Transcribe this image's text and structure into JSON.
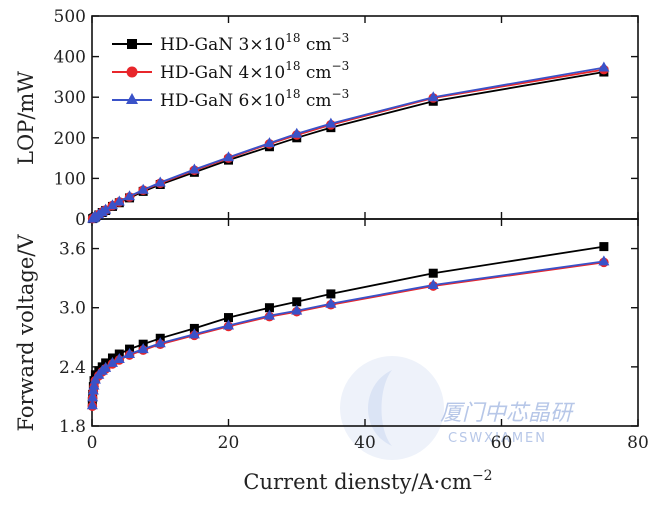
{
  "chart_data": [
    {
      "type": "line",
      "panel": "top",
      "ylabel": "LOP/mW",
      "ylim": [
        0,
        500
      ],
      "yticks": [
        "0",
        "100",
        "200",
        "300",
        "400",
        "500"
      ],
      "xlim": [
        0,
        80
      ],
      "legend_position": "top-left",
      "series": [
        {
          "name": "HD-GaN 3×10",
          "name_exp": "18",
          "name_unit": "cm",
          "name_unit_exp": "−3",
          "color": "#000000",
          "marker": "square",
          "x": [
            0.1,
            0.3,
            0.5,
            1,
            1.5,
            2,
            3,
            4,
            5.5,
            7.5,
            10,
            15,
            20,
            26,
            30,
            35,
            50,
            75
          ],
          "y": [
            1,
            3,
            5,
            10,
            16,
            21,
            31,
            40,
            52,
            68,
            85,
            115,
            145,
            178,
            200,
            225,
            290,
            362
          ]
        },
        {
          "name": "HD-GaN 4×10",
          "name_exp": "18",
          "name_unit": "cm",
          "name_unit_exp": "−3",
          "color": "#e8262b",
          "marker": "circle",
          "x": [
            0.1,
            0.3,
            0.5,
            1,
            1.5,
            2,
            3,
            4,
            5.5,
            7.5,
            10,
            15,
            20,
            26,
            30,
            35,
            50,
            75
          ],
          "y": [
            1,
            3,
            5,
            11,
            17,
            22,
            33,
            42,
            54,
            71,
            88,
            120,
            150,
            185,
            207,
            232,
            298,
            368
          ]
        },
        {
          "name": "HD-GaN 6×10",
          "name_exp": "18",
          "name_unit": "cm",
          "name_unit_exp": "−3",
          "color": "#3a52c8",
          "marker": "triangle",
          "x": [
            0.1,
            0.3,
            0.5,
            1,
            1.5,
            2,
            3,
            4,
            5.5,
            7.5,
            10,
            15,
            20,
            26,
            30,
            35,
            50,
            75
          ],
          "y": [
            1,
            3,
            6,
            11,
            17,
            23,
            34,
            43,
            56,
            72,
            90,
            122,
            152,
            187,
            210,
            235,
            300,
            373
          ]
        }
      ]
    },
    {
      "type": "line",
      "panel": "bottom",
      "ylabel": "Forward voltage/V",
      "ylim": [
        1.8,
        3.9
      ],
      "yticks": [
        "1.8",
        "2.4",
        "3.0",
        "3.6"
      ],
      "xlim": [
        0,
        80
      ],
      "xticks": [
        "0",
        "20",
        "40",
        "60",
        "80"
      ],
      "xlabel": "Current diensty/A·cm",
      "xlabel_exp": "−2",
      "series": [
        {
          "name": "HD-GaN 3×10^18 cm^-3",
          "color": "#000000",
          "marker": "square",
          "x": [
            0.05,
            0.1,
            0.2,
            0.3,
            0.5,
            1,
            1.5,
            2,
            3,
            4,
            5.5,
            7.5,
            10,
            15,
            20,
            26,
            30,
            35,
            50,
            75
          ],
          "y": [
            2.05,
            2.12,
            2.2,
            2.26,
            2.32,
            2.36,
            2.4,
            2.44,
            2.49,
            2.53,
            2.58,
            2.63,
            2.69,
            2.79,
            2.9,
            3.0,
            3.06,
            3.14,
            3.35,
            3.62
          ]
        },
        {
          "name": "HD-GaN 4×10^18 cm^-3",
          "color": "#e8262b",
          "marker": "circle",
          "x": [
            0.05,
            0.1,
            0.2,
            0.3,
            0.5,
            1,
            1.5,
            2,
            3,
            4,
            5.5,
            7.5,
            10,
            15,
            20,
            26,
            30,
            35,
            50,
            75
          ],
          "y": [
            2.0,
            2.08,
            2.15,
            2.2,
            2.26,
            2.31,
            2.35,
            2.38,
            2.43,
            2.47,
            2.52,
            2.57,
            2.63,
            2.72,
            2.81,
            2.91,
            2.96,
            3.03,
            3.22,
            3.46
          ]
        },
        {
          "name": "HD-GaN 6×10^18 cm^-3",
          "color": "#3a52c8",
          "marker": "triangle",
          "x": [
            0.05,
            0.1,
            0.2,
            0.3,
            0.5,
            1,
            1.5,
            2,
            3,
            4,
            5.5,
            7.5,
            10,
            15,
            20,
            26,
            30,
            35,
            50,
            75
          ],
          "y": [
            2.01,
            2.09,
            2.16,
            2.21,
            2.27,
            2.32,
            2.36,
            2.39,
            2.44,
            2.48,
            2.53,
            2.58,
            2.64,
            2.73,
            2.82,
            2.92,
            2.97,
            3.04,
            3.23,
            3.47
          ]
        }
      ]
    }
  ],
  "watermark": {
    "text_cn": "厦门中芯晶研",
    "text_en": "CSWXIAMEN"
  }
}
